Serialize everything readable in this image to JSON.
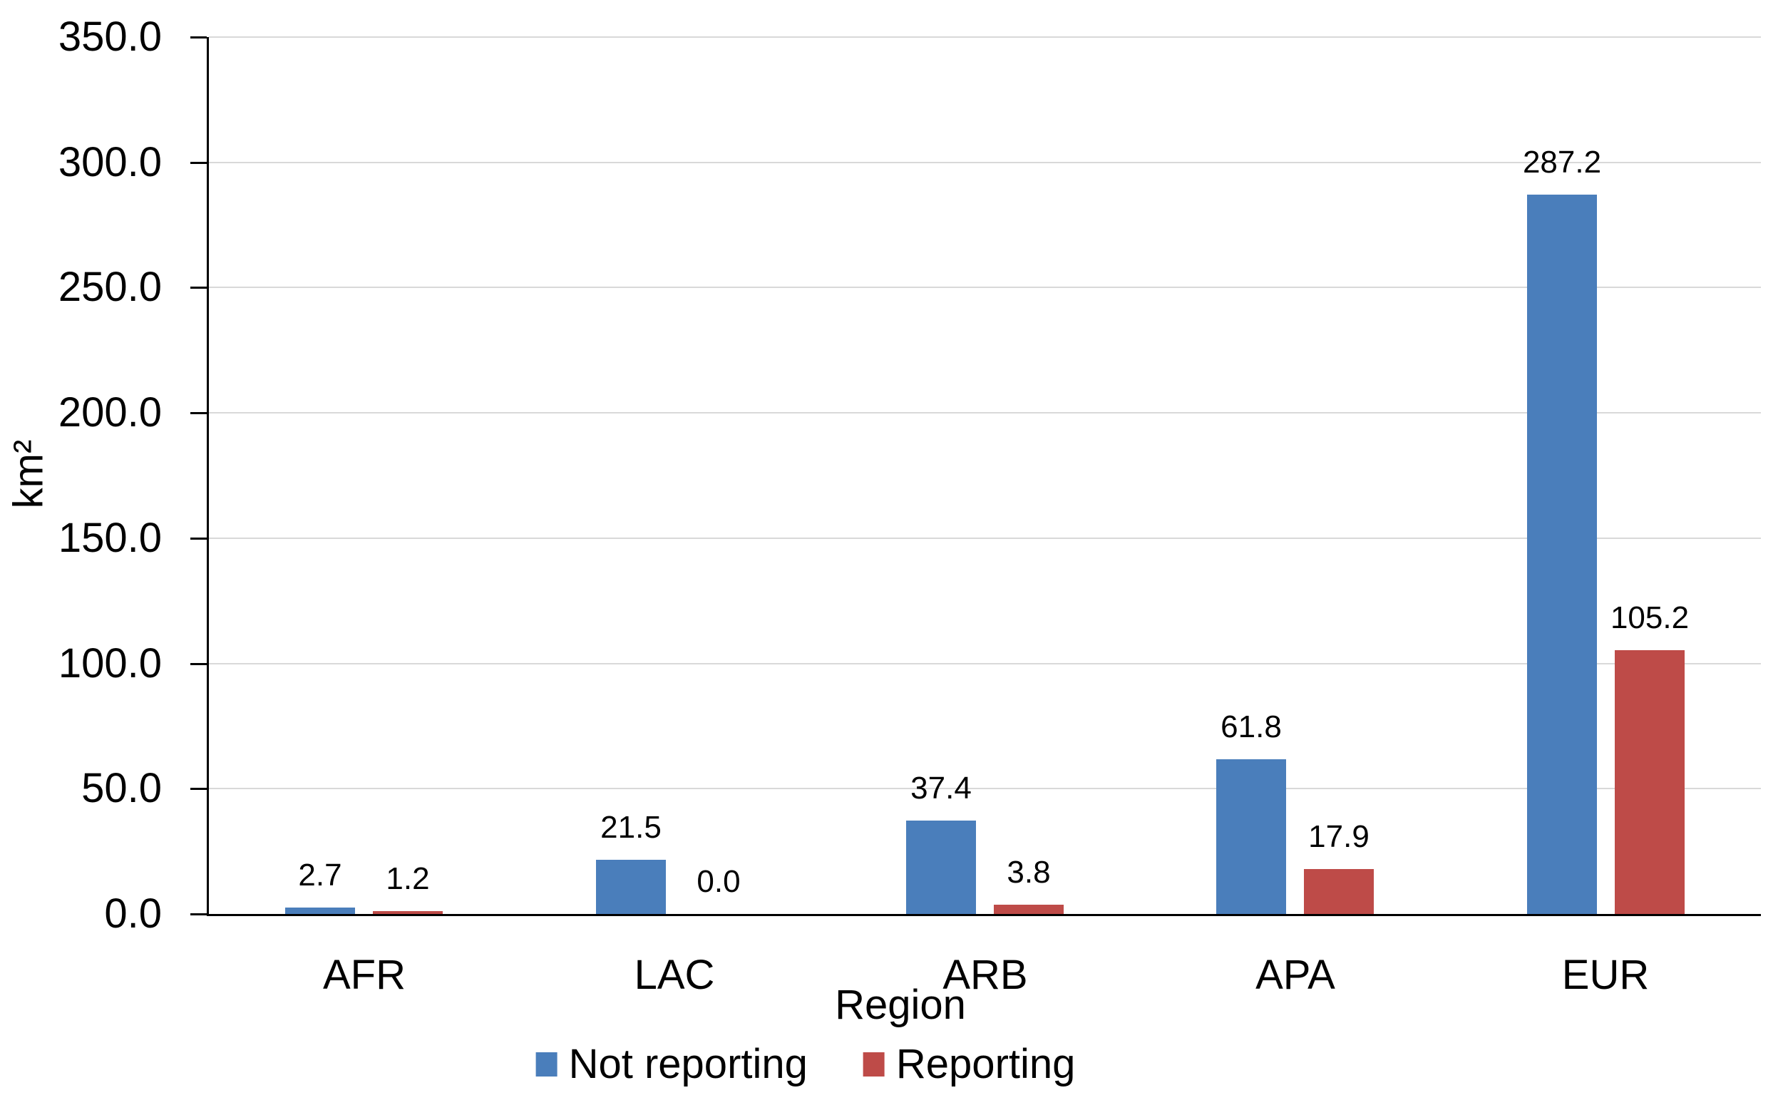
{
  "chart_data": {
    "type": "bar",
    "categories": [
      "AFR",
      "LAC",
      "ARB",
      "APA",
      "EUR"
    ],
    "series": [
      {
        "name": "Not reporting",
        "color": "#4A7EBB",
        "values": [
          2.7,
          21.5,
          37.4,
          61.8,
          287.2
        ]
      },
      {
        "name": "Reporting",
        "color": "#BE4B48",
        "values": [
          1.2,
          0.0,
          3.8,
          17.9,
          105.2
        ]
      }
    ],
    "title": "",
    "xlabel": "Region",
    "ylabel": "km²",
    "ylim": [
      0,
      350
    ],
    "ytick_step": 50,
    "ytick_labels": [
      "0.0",
      "50.0",
      "100.0",
      "150.0",
      "200.0",
      "250.0",
      "300.0",
      "350.0"
    ],
    "data_label_decimals": 1,
    "grid": "horizontal",
    "gridline_color": "#d9d9d9",
    "axis_color": "#000000",
    "background_color": "#ffffff",
    "legend_position": "bottom"
  }
}
